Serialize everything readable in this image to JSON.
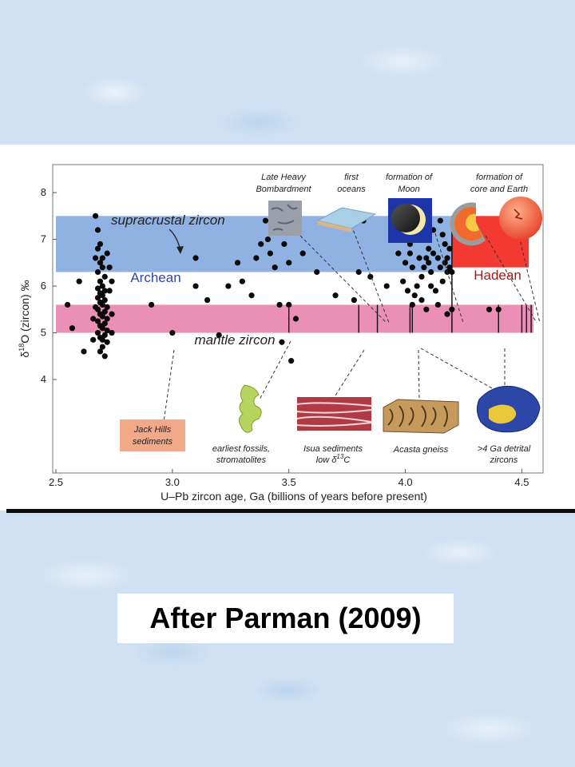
{
  "chart_data": {
    "type": "scatter",
    "xlabel": "U–Pb zircon age, Ga (billions of years before present)",
    "ylabel_parts": {
      "delta": "δ",
      "sup": "18",
      "rest": "O (zircon) ‰"
    },
    "xlim": [
      2.5,
      4.55
    ],
    "ylim": [
      2.0,
      8.6
    ],
    "x_ticks": [
      {
        "v": 2.5,
        "label": "2.5"
      },
      {
        "v": 3.0,
        "label": "3.0"
      },
      {
        "v": 3.5,
        "label": "3.5"
      },
      {
        "v": 4.0,
        "label": "4.0"
      },
      {
        "v": 4.5,
        "label": "4.5"
      }
    ],
    "y_ticks": [
      {
        "v": 4,
        "label": "4"
      },
      {
        "v": 5,
        "label": "5"
      },
      {
        "v": 6,
        "label": "6"
      },
      {
        "v": 7,
        "label": "7"
      },
      {
        "v": 8,
        "label": "8"
      }
    ],
    "bands": [
      {
        "label": "Archean",
        "x0": 2.5,
        "x1": 4.2,
        "y0": 6.3,
        "y1": 7.5,
        "color": "#8fb2e3",
        "label_color": "#3047a0"
      },
      {
        "label": "Hadean",
        "x0": 4.2,
        "x1": 4.53,
        "y0": 6.4,
        "y1": 7.5,
        "color": "#f23a33",
        "label_color": "#a81818"
      },
      {
        "label": "mantle zircon",
        "x0": 2.5,
        "x1": 4.55,
        "y0": 5.0,
        "y1": 5.6,
        "color": "#ea8fb6",
        "label_color": "#222222"
      }
    ],
    "region_label": "supracrustal zircon",
    "event_lines": [
      3.5,
      3.8,
      3.88,
      4.02,
      4.03,
      4.4,
      4.5,
      4.52,
      4.54
    ],
    "hadean_boundary_x": 4.2,
    "points": [
      [
        2.55,
        5.6
      ],
      [
        2.57,
        5.1
      ],
      [
        2.6,
        6.1
      ],
      [
        2.62,
        4.6
      ],
      [
        2.67,
        7.5
      ],
      [
        2.68,
        7.2
      ],
      [
        2.69,
        6.9
      ],
      [
        2.68,
        6.8
      ],
      [
        2.7,
        6.6
      ],
      [
        2.69,
        6.5
      ],
      [
        2.7,
        6.4
      ],
      [
        2.68,
        6.3
      ],
      [
        2.71,
        6.2
      ],
      [
        2.69,
        6.1
      ],
      [
        2.7,
        6.0
      ],
      [
        2.68,
        5.95
      ],
      [
        2.71,
        5.9
      ],
      [
        2.69,
        5.85
      ],
      [
        2.7,
        5.8
      ],
      [
        2.68,
        5.75
      ],
      [
        2.71,
        5.7
      ],
      [
        2.69,
        5.65
      ],
      [
        2.7,
        5.6
      ],
      [
        2.72,
        5.55
      ],
      [
        2.68,
        5.5
      ],
      [
        2.71,
        5.45
      ],
      [
        2.69,
        5.4
      ],
      [
        2.7,
        5.35
      ],
      [
        2.72,
        5.3
      ],
      [
        2.68,
        5.25
      ],
      [
        2.71,
        5.2
      ],
      [
        2.69,
        5.15
      ],
      [
        2.7,
        5.1
      ],
      [
        2.72,
        5.05
      ],
      [
        2.68,
        5.0
      ],
      [
        2.71,
        4.95
      ],
      [
        2.69,
        4.9
      ],
      [
        2.7,
        4.85
      ],
      [
        2.72,
        4.8
      ],
      [
        2.7,
        4.7
      ],
      [
        2.69,
        4.6
      ],
      [
        2.71,
        4.5
      ],
      [
        2.73,
        5.9
      ],
      [
        2.74,
        5.4
      ],
      [
        2.74,
        5.0
      ],
      [
        2.67,
        5.55
      ],
      [
        2.66,
        5.3
      ],
      [
        2.66,
        4.85
      ],
      [
        2.73,
        6.4
      ],
      [
        2.72,
        6.7
      ],
      [
        2.67,
        6.6
      ],
      [
        2.74,
        6.1
      ],
      [
        2.91,
        5.6
      ],
      [
        3.0,
        5.0
      ],
      [
        3.1,
        6.6
      ],
      [
        3.1,
        6.0
      ],
      [
        3.15,
        5.7
      ],
      [
        3.2,
        4.95
      ],
      [
        3.24,
        6.0
      ],
      [
        3.28,
        6.5
      ],
      [
        3.3,
        6.1
      ],
      [
        3.34,
        5.8
      ],
      [
        3.36,
        6.6
      ],
      [
        3.38,
        6.9
      ],
      [
        3.4,
        7.4
      ],
      [
        3.41,
        7.0
      ],
      [
        3.42,
        6.7
      ],
      [
        3.44,
        6.4
      ],
      [
        3.46,
        5.6
      ],
      [
        3.48,
        6.9
      ],
      [
        3.5,
        6.5
      ],
      [
        3.5,
        5.6
      ],
      [
        3.51,
        4.4
      ],
      [
        3.53,
        5.3
      ],
      [
        3.47,
        4.8
      ],
      [
        3.56,
        6.7
      ],
      [
        3.62,
        6.3
      ],
      [
        3.7,
        5.8
      ],
      [
        3.78,
        5.7
      ],
      [
        3.8,
        6.3
      ],
      [
        3.82,
        7.4
      ],
      [
        3.85,
        6.2
      ],
      [
        3.92,
        6.0
      ],
      [
        3.95,
        7.1
      ],
      [
        3.97,
        6.7
      ],
      [
        4.0,
        6.5
      ],
      [
        4.01,
        7.2
      ],
      [
        4.02,
        6.9
      ],
      [
        4.03,
        6.4
      ],
      [
        4.04,
        5.8
      ],
      [
        4.05,
        7.4
      ],
      [
        4.06,
        6.6
      ],
      [
        4.07,
        6.2
      ],
      [
        4.08,
        7.0
      ],
      [
        4.09,
        5.5
      ],
      [
        4.1,
        6.8
      ],
      [
        4.11,
        6.3
      ],
      [
        4.12,
        7.2
      ],
      [
        4.13,
        5.9
      ],
      [
        4.14,
        6.6
      ],
      [
        4.15,
        7.4
      ],
      [
        4.16,
        6.1
      ],
      [
        4.17,
        6.9
      ],
      [
        4.18,
        5.4
      ],
      [
        4.19,
        6.4
      ],
      [
        4.03,
        5.6
      ],
      [
        4.05,
        6.0
      ],
      [
        4.08,
        6.4
      ],
      [
        3.99,
        6.1
      ],
      [
        4.01,
        5.9
      ],
      [
        4.11,
        6.0
      ],
      [
        4.14,
        5.6
      ],
      [
        4.17,
        6.5
      ],
      [
        4.06,
        7.0
      ],
      [
        4.12,
        6.7
      ],
      [
        4.16,
        7.1
      ],
      [
        4.02,
        6.7
      ],
      [
        4.09,
        6.6
      ],
      [
        4.19,
        6.8
      ],
      [
        4.15,
        6.4
      ],
      [
        4.07,
        5.7
      ],
      [
        4.1,
        6.5
      ],
      [
        4.18,
        6.3
      ],
      [
        4.2,
        6.3
      ],
      [
        4.2,
        5.5
      ],
      [
        4.18,
        6.6
      ],
      [
        4.36,
        5.5
      ],
      [
        4.4,
        5.5
      ]
    ]
  },
  "annotations": {
    "late_heavy_bombardment": [
      "Late Heavy",
      "Bombardment"
    ],
    "first_oceans": [
      "first",
      "oceans"
    ],
    "formation_of_moon": [
      "formation of",
      "Moon"
    ],
    "formation_of_core": [
      "formation of",
      "core and Earth"
    ],
    "jack_hills": [
      "Jack Hills",
      "sediments"
    ],
    "earliest_fossils": [
      "earliest fossils,",
      "stromatolites"
    ],
    "isua_sediments": {
      "line1": "Isua sediments",
      "line2_pre": "low δ",
      "line2_sup": "13",
      "line2_post": "C"
    },
    "acasta_gneiss": "Acasta gneiss",
    "detrital_zircons": [
      ">4 Ga detrital",
      "zircons"
    ]
  },
  "caption": "After Parman (2009)"
}
